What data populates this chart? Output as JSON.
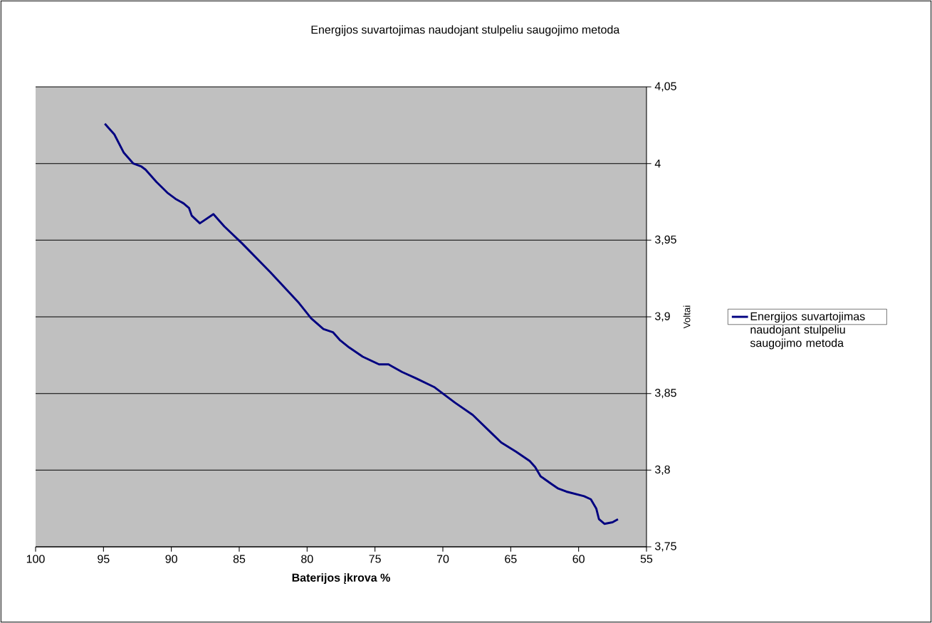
{
  "chart_data": {
    "type": "line",
    "title": "Energijos suvartojimas naudojant stulpeliu saugojimo metoda",
    "xlabel": "Baterijos įkrova %",
    "ylabel": "Voltai",
    "xlim": [
      100,
      55
    ],
    "xticks": [
      100,
      95,
      90,
      85,
      80,
      75,
      70,
      65,
      60,
      55
    ],
    "ylim": [
      3.75,
      4.05
    ],
    "yticks": [
      {
        "value": 3.75,
        "label": "3,75"
      },
      {
        "value": 3.8,
        "label": "3,8"
      },
      {
        "value": 3.85,
        "label": "3,85"
      },
      {
        "value": 3.9,
        "label": "3,9"
      },
      {
        "value": 3.95,
        "label": "3,95"
      },
      {
        "value": 4,
        "label": "4"
      },
      {
        "value": 4.05,
        "label": "4,05"
      }
    ],
    "grid": "y",
    "legend": "right",
    "marker": "none",
    "line_style": "solid",
    "series": [
      {
        "name": "Energijos suvartojimas naudojant stulpeliu saugojimo metoda",
        "color": "#000080",
        "x": [
          94.9,
          94.2,
          93.5,
          92.8,
          92.2,
          91.9,
          91.1,
          90.3,
          89.7,
          89.1,
          88.7,
          88.5,
          87.9,
          87.4,
          86.9,
          86.6,
          86.1,
          84.8,
          82.7,
          80.6,
          79.7,
          78.8,
          78.1,
          77.6,
          76.9,
          75.9,
          74.7,
          74.0,
          73.8,
          73.0,
          72.0,
          70.6,
          69.1,
          67.8,
          66.4,
          65.7,
          64.6,
          63.6,
          63.2,
          62.8,
          62.0,
          61.5,
          60.9,
          59.6,
          59.1,
          58.7,
          58.5,
          58.1,
          57.5,
          57.1
        ],
        "values": [
          4.026,
          4.019,
          4.007,
          4.0,
          3.998,
          3.996,
          3.988,
          3.981,
          3.977,
          3.974,
          3.971,
          3.966,
          3.961,
          3.964,
          3.967,
          3.964,
          3.959,
          3.948,
          3.929,
          3.909,
          3.899,
          3.892,
          3.89,
          3.885,
          3.88,
          3.874,
          3.869,
          3.869,
          3.868,
          3.864,
          3.86,
          3.854,
          3.844,
          3.836,
          3.824,
          3.818,
          3.812,
          3.806,
          3.802,
          3.796,
          3.791,
          3.788,
          3.786,
          3.783,
          3.781,
          3.775,
          3.768,
          3.765,
          3.766,
          3.768
        ]
      }
    ]
  }
}
